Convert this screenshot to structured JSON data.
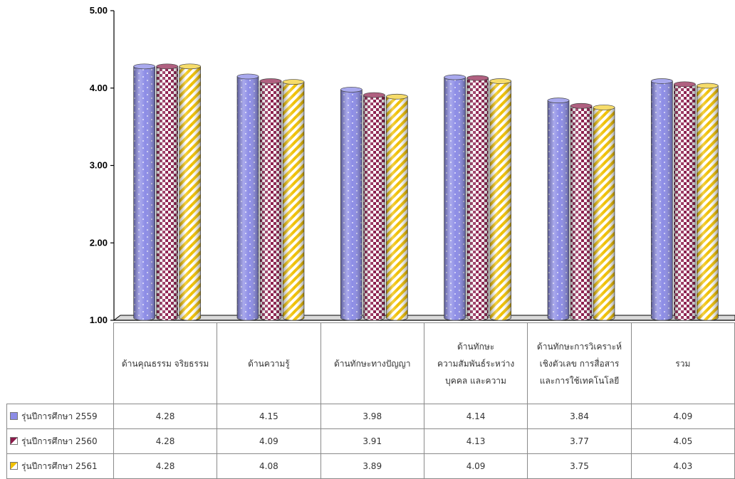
{
  "chart_data": {
    "type": "bar",
    "categories": [
      "ด้านคุณธรรม จริยธรรม",
      "ด้านความรู้",
      "ด้านทักษะทางปัญญา",
      "ด้านทักษะ ความสัมพันธ์ระหว่าง บุคคล และความ",
      "ด้านทักษะการวิเคราะห์ เชิงตัวเลข การสื่อสาร และการใช้เทคโนโลยี",
      "รวม"
    ],
    "category_lines": [
      [
        "ด้านคุณธรรม จริยธรรม"
      ],
      [
        "ด้านความรู้"
      ],
      [
        "ด้านทักษะทางปัญญา"
      ],
      [
        "ด้านทักษะ",
        "ความสัมพันธ์ระหว่าง",
        "บุคคล และความ"
      ],
      [
        "ด้านทักษะการวิเคราะห์",
        "เชิงตัวเลข การสื่อสาร",
        "และการใช้เทคโนโลยี"
      ],
      [
        "รวม"
      ]
    ],
    "series": [
      {
        "name": "รุ่นปีการศึกษา 2559",
        "values": [
          4.28,
          4.15,
          3.98,
          4.14,
          3.84,
          4.09
        ],
        "display": [
          "4.28",
          "4.15",
          "3.98",
          "4.14",
          "3.84",
          "4.09"
        ],
        "color": "#8c8ce6",
        "pattern": "dots"
      },
      {
        "name": "รุ่นปีการศึกษา 2560",
        "values": [
          4.28,
          4.09,
          3.91,
          4.13,
          3.77,
          4.05
        ],
        "display": [
          "4.28",
          "4.09",
          "3.91",
          "4.13",
          "3.77",
          "4.05"
        ],
        "color": "#8b1a4a",
        "pattern": "checker"
      },
      {
        "name": "รุ่นปีการศึกษา 2561",
        "values": [
          4.28,
          4.08,
          3.89,
          4.09,
          3.75,
          4.03
        ],
        "display": [
          "4.28",
          "4.08",
          "3.89",
          "4.09",
          "3.75",
          "4.03"
        ],
        "color": "#f0c000",
        "pattern": "stripes"
      }
    ],
    "ylim": [
      1.0,
      5.0
    ],
    "yticks": [
      "1.00",
      "2.00",
      "3.00",
      "4.00",
      "5.00"
    ],
    "title": "",
    "xlabel": "",
    "ylabel": "",
    "grid": false,
    "legend": "data-table-left"
  }
}
